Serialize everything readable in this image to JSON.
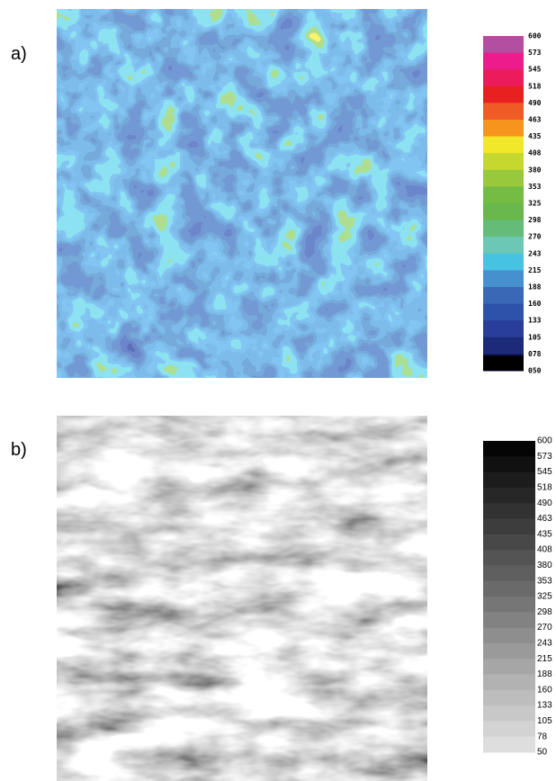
{
  "panels": [
    {
      "label": "a)",
      "colorbar": {
        "labels": [
          "600",
          "573",
          "545",
          "518",
          "490",
          "463",
          "435",
          "408",
          "380",
          "353",
          "325",
          "298",
          "270",
          "243",
          "215",
          "188",
          "160",
          "133",
          "105",
          "078",
          "050"
        ],
        "colors": [
          "#b44ea0",
          "#ec1c8c",
          "#ec1c5c",
          "#e8201f",
          "#f05a24",
          "#f7941d",
          "#f2e82a",
          "#c4d830",
          "#98c83c",
          "#74bc44",
          "#68b84c",
          "#64bc78",
          "#6cc8b4",
          "#46c2e2",
          "#4690d0",
          "#3a68b6",
          "#2e52a8",
          "#283e98",
          "#1c2a7a",
          "#121450",
          "#000000"
        ]
      }
    },
    {
      "label": "b)",
      "colorbar": {
        "labels": [
          "600",
          "573",
          "545",
          "518",
          "490",
          "463",
          "435",
          "408",
          "380",
          "353",
          "325",
          "298",
          "270",
          "243",
          "215",
          "188",
          "160",
          "133",
          "105",
          "78",
          "50"
        ],
        "colors": [
          "#050505",
          "#111111",
          "#1c1c1c",
          "#272727",
          "#323232",
          "#3d3d3d",
          "#484848",
          "#545454",
          "#5f5f5f",
          "#6a6a6a",
          "#767676",
          "#828282",
          "#8e8e8e",
          "#9a9a9a",
          "#a6a6a6",
          "#b2b2b2",
          "#bdbdbd",
          "#c8c8c8",
          "#d3d3d3",
          "#dedede"
        ]
      }
    }
  ]
}
